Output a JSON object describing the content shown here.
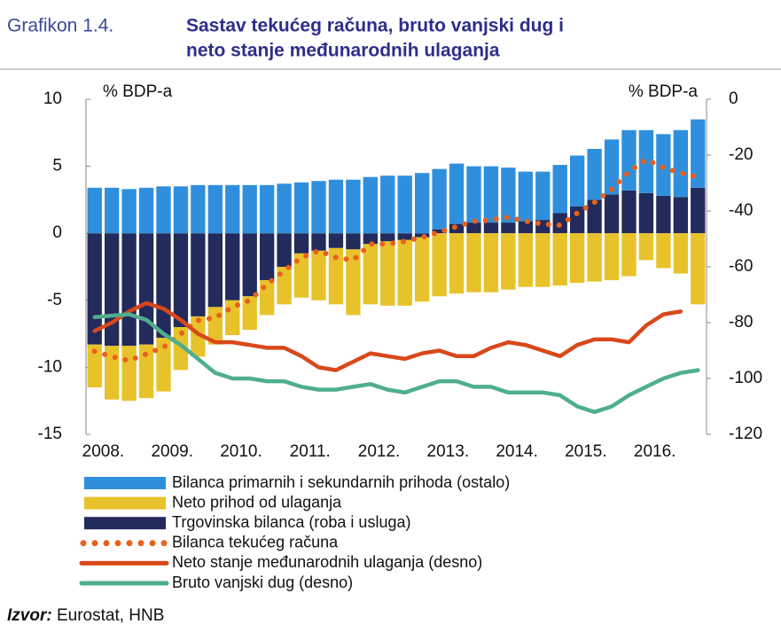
{
  "chart_data": {
    "type": "bar",
    "title_label": "Grafikon 1.4.",
    "title_lines": [
      "Sastav tekućeg računa, bruto vanjski dug i",
      "neto stanje međunarodnih ulaganja"
    ],
    "y_label": "% BDP-a",
    "y2_label": "% BDP-a",
    "categories": [
      "2008.",
      null,
      null,
      null,
      "2009.",
      null,
      null,
      null,
      "2010.",
      null,
      null,
      null,
      "2011.",
      null,
      null,
      null,
      "2012.",
      null,
      null,
      null,
      "2013.",
      null,
      null,
      null,
      "2014.",
      null,
      null,
      null,
      "2015.",
      null,
      null,
      null,
      "2016.",
      null,
      null,
      null
    ],
    "ylim": [
      -15,
      10
    ],
    "yticks": [
      10,
      5,
      0,
      -5,
      -10,
      -15
    ],
    "y2lim": [
      -120,
      0
    ],
    "y2ticks": [
      0,
      -20,
      -40,
      -60,
      -80,
      -100,
      -120
    ],
    "series": [
      {
        "name": "Bilanca primarnih i sekundarnih prihoda (ostalo)",
        "type": "bar",
        "color": "#2f8fdc",
        "values": [
          3.4,
          3.4,
          3.3,
          3.4,
          3.5,
          3.5,
          3.6,
          3.6,
          3.6,
          3.6,
          3.6,
          3.7,
          3.8,
          3.9,
          4.0,
          4.0,
          4.2,
          4.3,
          4.3,
          4.5,
          4.5,
          4.5,
          4.2,
          4.2,
          4.1,
          3.7,
          3.6,
          3.6,
          3.8,
          3.8,
          4.1,
          4.5,
          4.7,
          4.6,
          5.0,
          5.1
        ]
      },
      {
        "name": "Neto prihod od ulaganja",
        "type": "bar",
        "color": "#e8c22a",
        "values": [
          -3.2,
          -4.0,
          -4.1,
          -4.0,
          -4.0,
          -3.2,
          -3.0,
          -2.8,
          -2.6,
          -2.5,
          -2.6,
          -2.8,
          -3.3,
          -3.7,
          -4.2,
          -4.9,
          -4.5,
          -4.8,
          -4.9,
          -4.8,
          -4.7,
          -4.5,
          -4.4,
          -4.4,
          -4.2,
          -4.0,
          -4.0,
          -3.9,
          -3.7,
          -3.6,
          -3.5,
          -3.2,
          -2.0,
          -2.6,
          -3.0,
          -5.3
        ]
      },
      {
        "name": "Trgovinska bilanca (roba i usluga)",
        "type": "bar",
        "color": "#232a5c",
        "values": [
          -8.3,
          -8.4,
          -8.4,
          -8.3,
          -7.8,
          -7.0,
          -6.2,
          -5.5,
          -5.0,
          -4.7,
          -3.5,
          -2.5,
          -1.5,
          -1.3,
          -1.1,
          -1.2,
          -0.8,
          -0.6,
          -0.5,
          -0.3,
          0.3,
          0.7,
          0.8,
          0.8,
          0.8,
          0.9,
          1.0,
          1.5,
          2.0,
          2.5,
          2.9,
          3.2,
          3.0,
          2.8,
          2.7,
          3.4
        ]
      },
      {
        "name": "Bilanca tekućeg računa",
        "type": "line",
        "style": "dotted",
        "color": "#e8601c",
        "values": [
          -8.8,
          -9.2,
          -9.5,
          -9.0,
          -8.5,
          -7.5,
          -6.5,
          -6.3,
          -5.5,
          -5.0,
          -3.8,
          -2.8,
          -1.8,
          -1.3,
          -1.8,
          -2.0,
          -0.8,
          -0.8,
          -0.6,
          -0.3,
          0.1,
          0.5,
          0.9,
          1.0,
          1.2,
          0.9,
          0.7,
          0.6,
          1.5,
          2.3,
          3.3,
          4.6,
          5.5,
          4.9,
          4.5,
          4.2
        ]
      },
      {
        "name": "Neto stanje međunarodnih ulaganja (desno)",
        "type": "line",
        "style": "solid",
        "axis": "y2",
        "color": "#d9481a",
        "values": [
          -83,
          -80,
          -76,
          -73,
          -75,
          -79,
          -84,
          -87,
          -87,
          -88,
          -89,
          -89,
          -92,
          -96,
          -97,
          -94,
          -91,
          -92,
          -93,
          -91,
          -90,
          -92,
          -92,
          -89,
          -87,
          -88,
          -90,
          -92,
          -88,
          -86,
          -86,
          -87,
          -81,
          -77,
          -76,
          null
        ]
      },
      {
        "name": "Bruto vanjski dug (desno)",
        "type": "line",
        "style": "solid",
        "axis": "y2",
        "color": "#4fae8f",
        "values": [
          -78,
          -77.5,
          -77,
          -79,
          -84,
          -88,
          -93,
          -98,
          -100,
          -100,
          -101,
          -101,
          -103,
          -104,
          -104,
          -103,
          -102,
          -104,
          -105,
          -103,
          -101,
          -101,
          -103,
          -103,
          -105,
          -105,
          -105,
          -106,
          -110,
          -112,
          -110,
          -106,
          -103,
          -100,
          -98,
          -97
        ]
      }
    ],
    "source_label": "Izvor:",
    "source_text": "Eurostat, HNB"
  }
}
